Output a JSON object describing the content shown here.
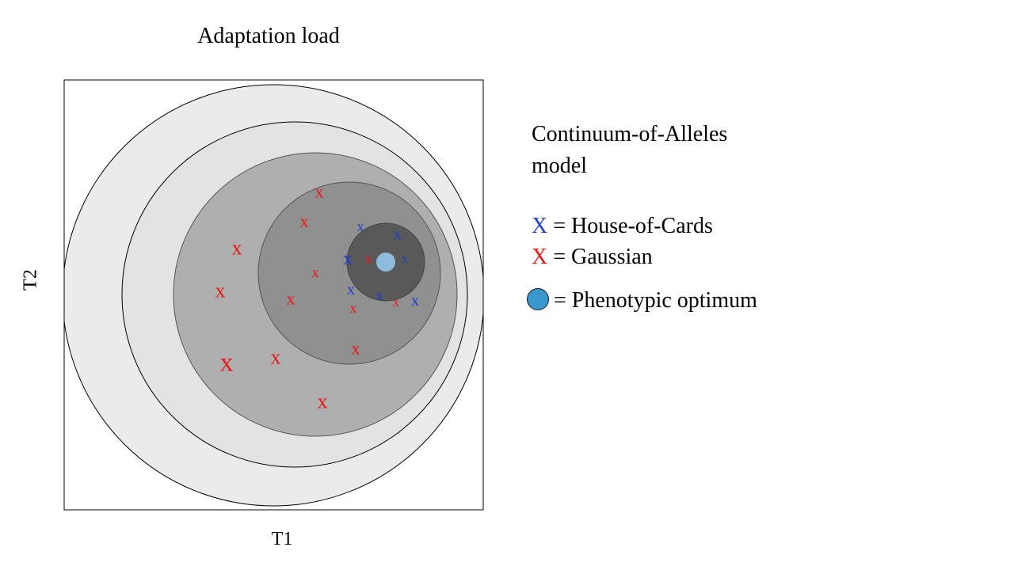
{
  "title": "Adaptation load",
  "axes": {
    "xlabel": "T1",
    "ylabel": "T2"
  },
  "legend": {
    "model_title": "Continuum-of-Alleles model",
    "hoc_marker": "X",
    "hoc_label": "= House-of-Cards",
    "gauss_marker": "X",
    "gauss_label": "= Gaussian",
    "optimum_label": "= Phenotypic  optimum"
  },
  "colors": {
    "house_of_cards": "#1f3fce",
    "gaussian": "#e81818",
    "optimum": "#3a97cd",
    "optimum_in_plot": "#8fbcdc",
    "ring_1": "#ebebeb",
    "ring_2": "#e3e3e3",
    "ring_3": "#afafaf",
    "ring_4": "#909090",
    "ring_5": "#595959"
  },
  "markers": {
    "gaussian": [
      {
        "label": "x"
      },
      {
        "label": "x"
      },
      {
        "label": "x"
      },
      {
        "label": "x"
      },
      {
        "label": "x"
      },
      {
        "label": "x"
      },
      {
        "label": "x"
      },
      {
        "label": "x"
      },
      {
        "label": "x"
      },
      {
        "label": "x"
      },
      {
        "label": "x"
      },
      {
        "label": "x"
      },
      {
        "label": "x"
      },
      {
        "label": "x"
      }
    ],
    "house_of_cards": [
      {
        "label": "x"
      },
      {
        "label": "x"
      },
      {
        "label": "x"
      },
      {
        "label": "x"
      },
      {
        "label": "x"
      },
      {
        "label": "x"
      },
      {
        "label": "x"
      }
    ]
  }
}
